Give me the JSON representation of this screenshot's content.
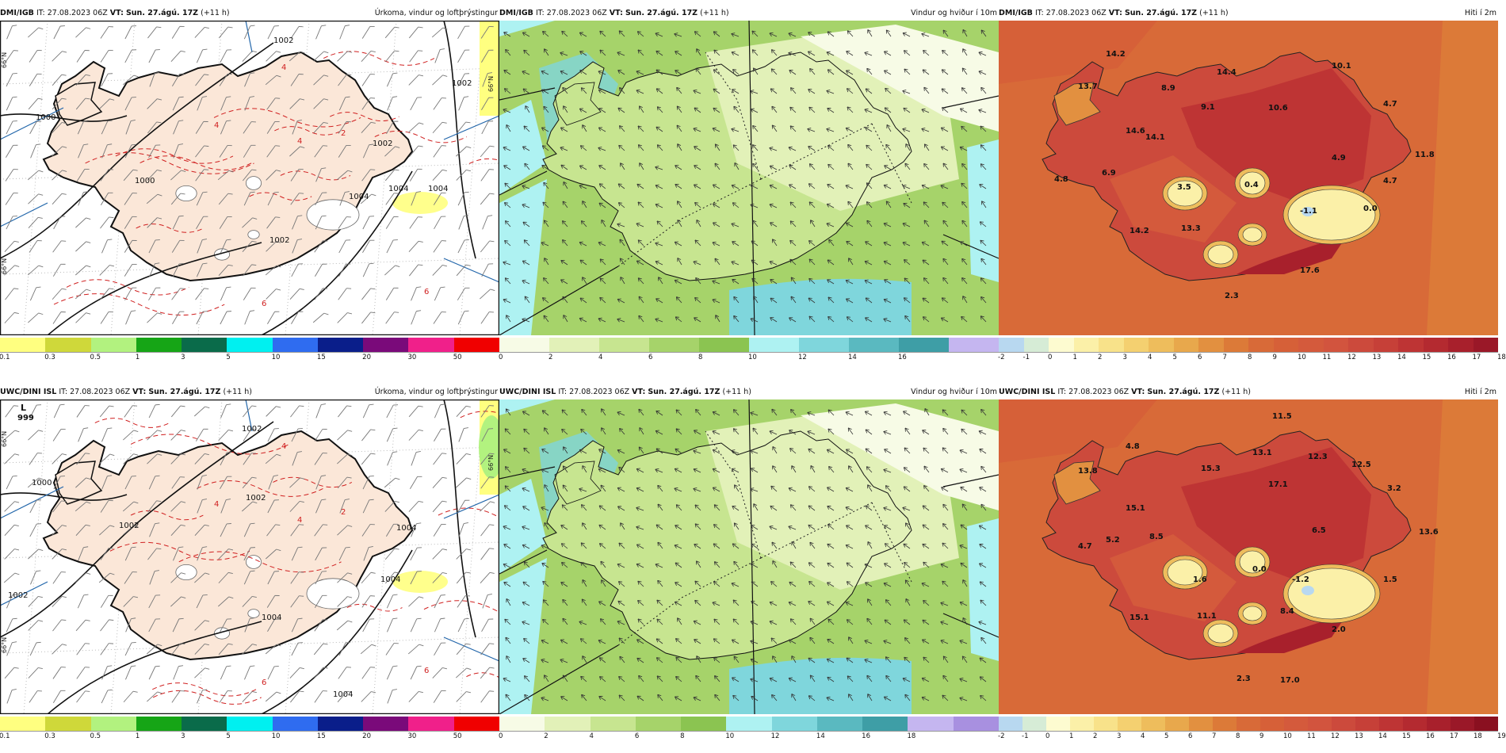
{
  "rows": [
    {
      "panels": [
        {
          "model": "DMI/IGB",
          "it_label": "IT:",
          "it_value": "27.08.2023 06Z",
          "vt_label": "VT:",
          "vt_value": "Sun. 27.ágú. 17Z",
          "lead": "(+11 h)",
          "product": "Úrkoma, vindur og loftþrýstingur",
          "kind": "precip",
          "ticks": [
            "0.1",
            "0.3",
            "0.5",
            "1",
            "3",
            "5",
            "10",
            "15",
            "20",
            "30",
            "50"
          ],
          "colors": [
            "#ffff80",
            "#cfd83a",
            "#b2f27f",
            "#16a516",
            "#0a6b4a",
            "#00f0f0",
            "#2f6cf0",
            "#0a1e8a",
            "#7a0a7a",
            "#f0208a",
            "#f00000"
          ],
          "isobars": [
            "1002",
            "1002",
            "1000",
            "1002",
            "1000",
            "1004",
            "1004",
            "1002",
            "1004"
          ],
          "cont_labels": [
            "4",
            "4",
            "4",
            "6",
            "6",
            "2"
          ]
        },
        {
          "model": "DMI/IGB",
          "it_label": "IT:",
          "it_value": "27.08.2023 06Z",
          "vt_label": "VT:",
          "vt_value": "Sun. 27.ágú. 17Z",
          "lead": "(+11 h)",
          "product": "Vindur og hviður í 10m",
          "kind": "wind",
          "ticks": [
            "0",
            "2",
            "4",
            "6",
            "8",
            "10",
            "12",
            "14",
            "16"
          ],
          "colors": [
            "#f7fbe6",
            "#e2f1b8",
            "#c7e590",
            "#a6d36a",
            "#8bc451",
            "#aef2f2",
            "#7fd6dc",
            "#5ab9c0",
            "#3e9ea6",
            "#c5b6f0"
          ]
        },
        {
          "model": "DMI/IGB",
          "it_label": "IT:",
          "it_value": "27.08.2023 06Z",
          "vt_label": "VT:",
          "vt_value": "Sun. 27.ágú. 17Z",
          "lead": "(+11 h)",
          "product": "Hiti í 2m",
          "kind": "temp",
          "ticks": [
            "-2",
            "-1",
            "0",
            "1",
            "2",
            "3",
            "4",
            "5",
            "6",
            "7",
            "8",
            "9",
            "10",
            "11",
            "12",
            "13",
            "14",
            "15",
            "16",
            "17",
            "18"
          ],
          "colors": [
            "#b8d8f0",
            "#d6ecd6",
            "#fdfbd0",
            "#fbf0a8",
            "#f8e28a",
            "#f4d070",
            "#eebd5c",
            "#e8a84c",
            "#e29040",
            "#dc7a38",
            "#d86a38",
            "#d66038",
            "#d45a3c",
            "#d2543e",
            "#cc4a3c",
            "#c64038",
            "#be3434",
            "#b42a30",
            "#a8202c",
            "#9a1828"
          ],
          "values": [
            "14.2",
            "13.7",
            "8.9",
            "14.4",
            "10.1",
            "9.1",
            "10.6",
            "14.6",
            "14.1",
            "4.7",
            "4.9",
            "11.8",
            "6.9",
            "4.8",
            "3.5",
            "0.4",
            "-1.1",
            "0.0",
            "4.7",
            "14.2",
            "13.3",
            "17.6",
            "2.3"
          ]
        }
      ]
    },
    {
      "panels": [
        {
          "model": "UWC/DINI ISL",
          "it_label": "IT:",
          "it_value": "27.08.2023 06Z",
          "vt_label": "VT:",
          "vt_value": "Sun. 27.ágú. 17Z",
          "lead": "(+11 h)",
          "product": "Úrkoma, vindur og loftþrýstingur",
          "kind": "precip",
          "ticks": [
            "0.1",
            "0.3",
            "0.5",
            "1",
            "3",
            "5",
            "10",
            "15",
            "20",
            "30",
            "50"
          ],
          "colors": [
            "#ffff80",
            "#cfd83a",
            "#b2f27f",
            "#16a516",
            "#0a6b4a",
            "#00f0f0",
            "#2f6cf0",
            "#0a1e8a",
            "#7a0a7a",
            "#f0208a",
            "#f00000"
          ],
          "isobars": [
            "1000",
            "1002",
            "1002",
            "1002",
            "1004",
            "1004",
            "1004",
            "1004",
            "1002"
          ],
          "cont_labels": [
            "4",
            "4",
            "4",
            "6",
            "6",
            "2"
          ],
          "low_marker": "L",
          "low_value": "999"
        },
        {
          "model": "UWC/DINI ISL",
          "it_label": "IT:",
          "it_value": "27.08.2023 06Z",
          "vt_label": "VT:",
          "vt_value": "Sun. 27.ágú. 17Z",
          "lead": "(+11 h)",
          "product": "Vindur og hviður í 10m",
          "kind": "wind",
          "ticks": [
            "0",
            "2",
            "4",
            "6",
            "8",
            "10",
            "12",
            "14",
            "16",
            "18"
          ],
          "colors": [
            "#f7fbe6",
            "#e2f1b8",
            "#c7e590",
            "#a6d36a",
            "#8bc451",
            "#aef2f2",
            "#7fd6dc",
            "#5ab9c0",
            "#3e9ea6",
            "#c5b6f0",
            "#a890e0"
          ]
        },
        {
          "model": "UWC/DINI ISL",
          "it_label": "IT:",
          "it_value": "27.08.2023 06Z",
          "vt_label": "VT:",
          "vt_value": "Sun. 27.ágú. 17Z",
          "lead": "(+11 h)",
          "product": "Hiti í 2m",
          "kind": "temp",
          "ticks": [
            "-2",
            "-1",
            "0",
            "1",
            "2",
            "3",
            "4",
            "5",
            "6",
            "7",
            "8",
            "9",
            "10",
            "11",
            "12",
            "13",
            "14",
            "15",
            "16",
            "17",
            "18",
            "19"
          ],
          "colors": [
            "#b8d8f0",
            "#d6ecd6",
            "#fdfbd0",
            "#fbf0a8",
            "#f8e28a",
            "#f4d070",
            "#eebd5c",
            "#e8a84c",
            "#e29040",
            "#dc7a38",
            "#d86a38",
            "#d66038",
            "#d45a3c",
            "#d2543e",
            "#cc4a3c",
            "#c64038",
            "#be3434",
            "#b42a30",
            "#a8202c",
            "#9a1828",
            "#8a1020"
          ],
          "values": [
            "11.5",
            "4.8",
            "13.1",
            "12.3",
            "13.8",
            "15.3",
            "17.1",
            "12.5",
            "3.2",
            "15.1",
            "6.5",
            "13.6",
            "5.2",
            "8.5",
            "4.7",
            "1.6",
            "0.0",
            "-1.2",
            "1.5",
            "8.4",
            "15.1",
            "11.1",
            "2.0",
            "2.3",
            "17.0"
          ]
        }
      ]
    }
  ],
  "axis_labels": {
    "lat66": "66°N"
  }
}
